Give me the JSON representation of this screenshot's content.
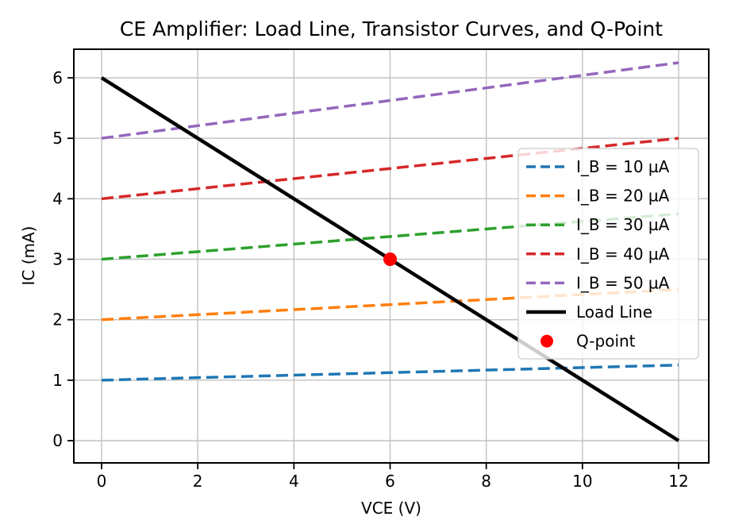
{
  "chart_data": {
    "type": "line",
    "title": "CE Amplifier: Load Line, Transistor Curves, and Q-Point",
    "xlabel": "VCE (V)",
    "ylabel": "IC (mA)",
    "x_range": [
      0,
      12
    ],
    "y_range": [
      0,
      6
    ],
    "xticks": [
      0,
      2,
      4,
      6,
      8,
      10,
      12
    ],
    "yticks": [
      0,
      1,
      2,
      3,
      4,
      5,
      6
    ],
    "grid": true,
    "grid_color": "#c2c2c2",
    "axis_color": "#000000",
    "legend_position": "center right",
    "legend_border_color": "#cccccc",
    "series": [
      {
        "id": "ib-10",
        "label": "I_B = 10 µA",
        "color": "#1f77b4",
        "style": "dashed",
        "x": [
          0,
          12
        ],
        "y": [
          1.0,
          1.25
        ]
      },
      {
        "id": "ib-20",
        "label": "I_B = 20 µA",
        "color": "#ff7f0e",
        "style": "dashed",
        "x": [
          0,
          12
        ],
        "y": [
          2.0,
          2.5
        ]
      },
      {
        "id": "ib-30",
        "label": "I_B = 30 µA",
        "color": "#2ca02c",
        "style": "dashed",
        "x": [
          0,
          12
        ],
        "y": [
          3.0,
          3.75
        ]
      },
      {
        "id": "ib-40",
        "label": "I_B = 40 µA",
        "color": "#d62728",
        "style": "dashed",
        "x": [
          0,
          12
        ],
        "y": [
          4.0,
          5.0
        ]
      },
      {
        "id": "ib-50",
        "label": "I_B = 50 µA",
        "color": "#9467bd",
        "style": "dashed",
        "x": [
          0,
          12
        ],
        "y": [
          5.0,
          6.25
        ]
      },
      {
        "id": "load-line",
        "label": "Load Line",
        "color": "#000000",
        "style": "solid",
        "x": [
          0,
          12
        ],
        "y": [
          6.0,
          0.0
        ]
      }
    ],
    "q_point": {
      "label": "Q-point",
      "color": "#ff0000",
      "x": 6,
      "y": 3
    }
  }
}
